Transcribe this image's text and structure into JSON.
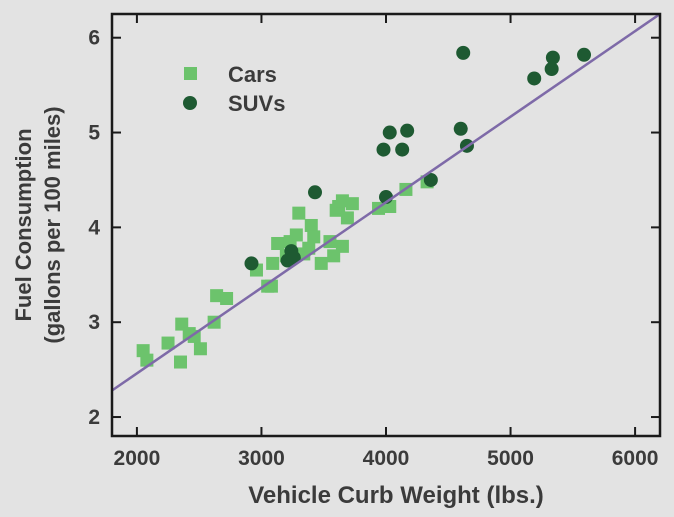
{
  "chart_data": {
    "type": "scatter",
    "title": "",
    "xlabel": "Vehicle Curb Weight (lbs.)",
    "ylabel_line1": "Fuel Consumption",
    "ylabel_line2": "(gallons per 100 miles)",
    "xlim": [
      1800,
      6200
    ],
    "ylim": [
      1.8,
      6.25
    ],
    "xticks": [
      2000,
      3000,
      4000,
      5000,
      6000
    ],
    "yticks": [
      2,
      3,
      4,
      5,
      6
    ],
    "grid": false,
    "legend_position": "top-left",
    "series": [
      {
        "name": "Cars",
        "marker": "square",
        "color": "#6cc36c",
        "points": [
          [
            2050,
            2.7
          ],
          [
            2080,
            2.6
          ],
          [
            2250,
            2.78
          ],
          [
            2350,
            2.58
          ],
          [
            2360,
            2.98
          ],
          [
            2420,
            2.88
          ],
          [
            2460,
            2.85
          ],
          [
            2510,
            2.72
          ],
          [
            2620,
            3.0
          ],
          [
            2640,
            3.28
          ],
          [
            2720,
            3.25
          ],
          [
            2960,
            3.55
          ],
          [
            3050,
            3.38
          ],
          [
            3080,
            3.38
          ],
          [
            3090,
            3.62
          ],
          [
            3130,
            3.83
          ],
          [
            3200,
            3.7
          ],
          [
            3230,
            3.85
          ],
          [
            3280,
            3.92
          ],
          [
            3300,
            4.15
          ],
          [
            3340,
            3.72
          ],
          [
            3380,
            3.78
          ],
          [
            3400,
            4.02
          ],
          [
            3420,
            3.9
          ],
          [
            3480,
            3.62
          ],
          [
            3550,
            3.85
          ],
          [
            3580,
            3.7
          ],
          [
            3600,
            4.18
          ],
          [
            3620,
            4.22
          ],
          [
            3650,
            3.8
          ],
          [
            3650,
            4.28
          ],
          [
            3690,
            4.1
          ],
          [
            3730,
            4.25
          ],
          [
            3940,
            4.2
          ],
          [
            4030,
            4.22
          ],
          [
            4160,
            4.4
          ],
          [
            4330,
            4.48
          ]
        ]
      },
      {
        "name": "SUVs",
        "marker": "circle",
        "color": "#1e5a32",
        "points": [
          [
            2920,
            3.62
          ],
          [
            3210,
            3.65
          ],
          [
            3240,
            3.75
          ],
          [
            3260,
            3.68
          ],
          [
            3430,
            4.37
          ],
          [
            3980,
            4.82
          ],
          [
            4000,
            4.32
          ],
          [
            4030,
            5.0
          ],
          [
            4130,
            4.82
          ],
          [
            4170,
            5.02
          ],
          [
            4360,
            4.5
          ],
          [
            4600,
            5.04
          ],
          [
            4620,
            5.84
          ],
          [
            4650,
            4.86
          ],
          [
            5190,
            5.57
          ],
          [
            5330,
            5.67
          ],
          [
            5340,
            5.79
          ],
          [
            5590,
            5.82
          ]
        ]
      }
    ],
    "fit_line": {
      "color": "#7e6aa8",
      "start": [
        1800,
        2.28
      ],
      "end": [
        6200,
        6.25
      ]
    },
    "axis_color": "#1a1a1a",
    "background": "#e3e3e3"
  }
}
